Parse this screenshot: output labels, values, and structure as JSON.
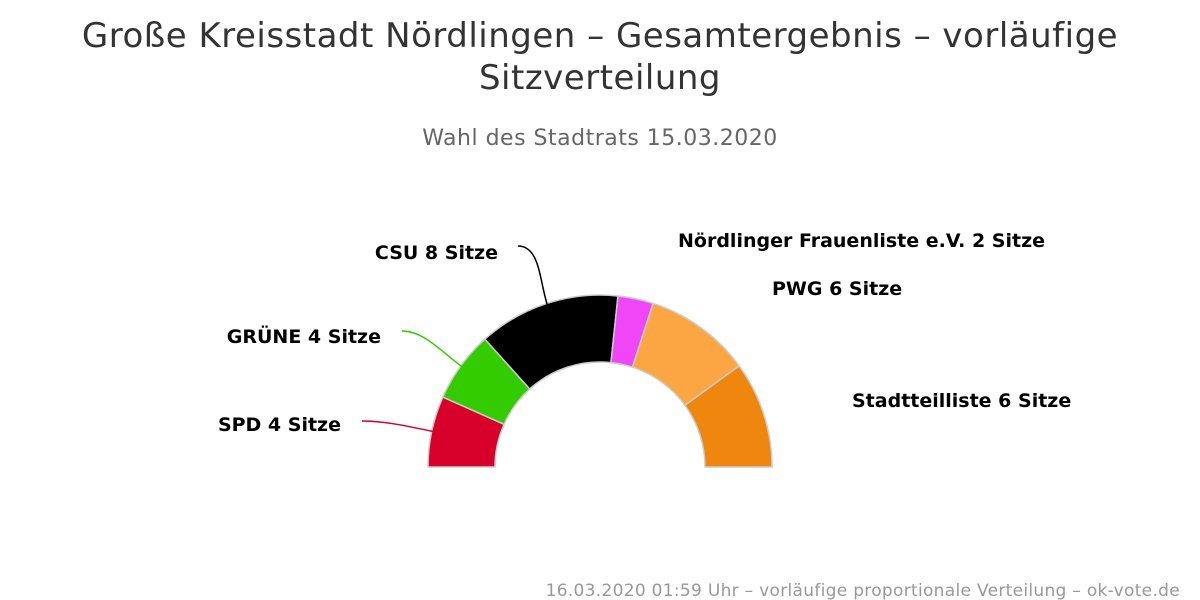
{
  "chart_data": {
    "type": "pie",
    "variant": "parliament-semicircle",
    "title_lines": [
      "Große Kreisstadt Nördlingen – Gesamtergebnis – vorläufige",
      "Sitzverteilung"
    ],
    "subtitle": "Wahl des Stadtrats 15.03.2020",
    "unit": "Sitze",
    "series": [
      {
        "name": "SPD",
        "value": 4,
        "color": "#d7002b",
        "label": "SPD 4 Sitze"
      },
      {
        "name": "GRÜNE",
        "value": 4,
        "color": "#33cc00",
        "label": "GRÜNE 4 Sitze"
      },
      {
        "name": "CSU",
        "value": 8,
        "color": "#000000",
        "label": "CSU 8 Sitze"
      },
      {
        "name": "Nördlinger Frauenliste e.V.",
        "value": 2,
        "color": "#f145f8",
        "label": "Nördlinger Frauenliste e.V. 2 Sitze"
      },
      {
        "name": "PWG",
        "value": 6,
        "color": "#fca643",
        "label": "PWG 6 Sitze"
      },
      {
        "name": "Stadtteilliste",
        "value": 6,
        "color": "#ef870e",
        "label": "Stadtteilliste 6 Sitze"
      }
    ],
    "footer": "16.03.2020 01:59 Uhr – vorläufige proportionale Verteilung – ok-vote.de"
  }
}
